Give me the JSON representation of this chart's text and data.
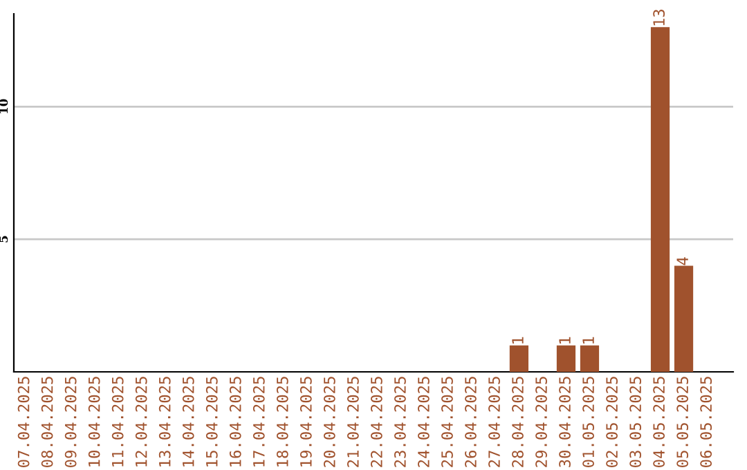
{
  "chart_data": {
    "type": "bar",
    "categories": [
      "07.04.2025",
      "08.04.2025",
      "09.04.2025",
      "10.04.2025",
      "11.04.2025",
      "12.04.2025",
      "13.04.2025",
      "14.04.2025",
      "15.04.2025",
      "16.04.2025",
      "17.04.2025",
      "18.04.2025",
      "19.04.2025",
      "20.04.2025",
      "21.04.2025",
      "22.04.2025",
      "23.04.2025",
      "24.04.2025",
      "25.04.2025",
      "26.04.2025",
      "27.04.2025",
      "28.04.2025",
      "29.04.2025",
      "30.04.2025",
      "01.05.2025",
      "02.05.2025",
      "03.05.2025",
      "04.05.2025",
      "05.05.2025",
      "06.05.2025"
    ],
    "values": [
      0,
      0,
      0,
      0,
      0,
      0,
      0,
      0,
      0,
      0,
      0,
      0,
      0,
      0,
      0,
      0,
      0,
      0,
      0,
      0,
      0,
      1,
      0,
      1,
      1,
      0,
      0,
      13,
      4,
      0
    ],
    "value_labels": [
      null,
      null,
      null,
      null,
      null,
      null,
      null,
      null,
      null,
      null,
      null,
      null,
      null,
      null,
      null,
      null,
      null,
      null,
      null,
      null,
      null,
      "1",
      null,
      "1",
      "1",
      null,
      null,
      "13",
      "4",
      null
    ],
    "color": "#a0522d",
    "ylim": [
      0,
      13.5
    ],
    "yticks": [
      5,
      10
    ],
    "grid": "y"
  }
}
